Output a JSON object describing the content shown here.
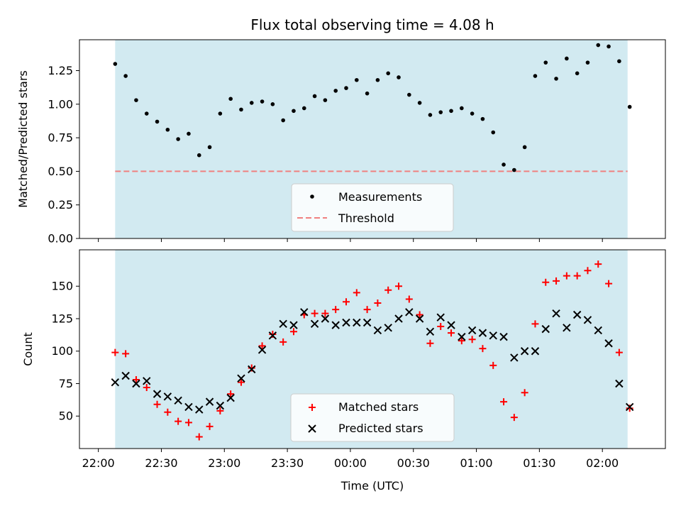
{
  "chart_data": [
    {
      "type": "scatter",
      "title": "Flux total observing time = 4.08 h",
      "ylabel": "Matched/Predicted stars",
      "xlabel": "",
      "ylim": [
        0,
        1.48
      ],
      "yticks": [
        "0.00",
        "0.25",
        "0.50",
        "0.75",
        "1.00",
        "1.25"
      ],
      "shaded_span": [
        "22:08",
        "02:12"
      ],
      "shaded_color": "#add8e6",
      "legend_position": "lower center",
      "series": [
        {
          "name": "Measurements",
          "marker": "dot",
          "color": "#000000",
          "x": [
            "22:08",
            "22:13",
            "22:18",
            "22:23",
            "22:28",
            "22:33",
            "22:38",
            "22:43",
            "22:48",
            "22:53",
            "22:58",
            "23:03",
            "23:08",
            "23:13",
            "23:18",
            "23:23",
            "23:28",
            "23:33",
            "23:38",
            "23:43",
            "23:48",
            "23:53",
            "23:58",
            "00:03",
            "00:08",
            "00:13",
            "00:18",
            "00:23",
            "00:28",
            "00:33",
            "00:38",
            "00:43",
            "00:48",
            "00:53",
            "00:58",
            "01:03",
            "01:08",
            "01:13",
            "01:18",
            "01:23",
            "01:28",
            "01:33",
            "01:38",
            "01:43",
            "01:48",
            "01:53",
            "01:58",
            "02:03",
            "02:08",
            "02:13"
          ],
          "y": [
            1.3,
            1.21,
            1.03,
            0.93,
            0.87,
            0.81,
            0.74,
            0.78,
            0.62,
            0.68,
            0.93,
            1.04,
            0.96,
            1.01,
            1.02,
            1.0,
            0.88,
            0.95,
            0.97,
            1.06,
            1.03,
            1.1,
            1.12,
            1.18,
            1.08,
            1.18,
            1.23,
            1.2,
            1.07,
            1.01,
            0.92,
            0.94,
            0.95,
            0.97,
            0.93,
            0.89,
            0.79,
            0.55,
            0.51,
            0.68,
            1.21,
            1.31,
            1.19,
            1.34,
            1.23,
            1.31,
            1.44,
            1.43,
            1.32,
            0.98
          ]
        },
        {
          "name": "Threshold",
          "style": "dashed",
          "color": "#f08080",
          "y": 0.5
        }
      ]
    },
    {
      "type": "scatter",
      "title": "",
      "ylabel": "Count",
      "xlabel": "Time (UTC)",
      "ylim": [
        25,
        178
      ],
      "yticks": [
        "50",
        "75",
        "100",
        "125",
        "150"
      ],
      "xticks": [
        "22:00",
        "22:30",
        "23:00",
        "23:30",
        "00:00",
        "00:30",
        "01:00",
        "01:30",
        "02:00"
      ],
      "shaded_span": [
        "22:08",
        "02:12"
      ],
      "shaded_color": "#add8e6",
      "legend_position": "lower center",
      "series": [
        {
          "name": "Matched stars",
          "marker": "plus",
          "color": "#ff0000",
          "x": [
            "22:08",
            "22:13",
            "22:18",
            "22:23",
            "22:28",
            "22:33",
            "22:38",
            "22:43",
            "22:48",
            "22:53",
            "22:58",
            "23:03",
            "23:08",
            "23:13",
            "23:18",
            "23:23",
            "23:28",
            "23:33",
            "23:38",
            "23:43",
            "23:48",
            "23:53",
            "23:58",
            "00:03",
            "00:08",
            "00:13",
            "00:18",
            "00:23",
            "00:28",
            "00:33",
            "00:38",
            "00:43",
            "00:48",
            "00:53",
            "00:58",
            "01:03",
            "01:08",
            "01:13",
            "01:18",
            "01:23",
            "01:28",
            "01:33",
            "01:38",
            "01:43",
            "01:48",
            "01:53",
            "01:58",
            "02:03",
            "02:08",
            "02:13"
          ],
          "y": [
            99,
            98,
            78,
            72,
            59,
            53,
            46,
            45,
            34,
            42,
            54,
            67,
            76,
            87,
            104,
            113,
            107,
            115,
            128,
            129,
            129,
            132,
            138,
            145,
            132,
            137,
            147,
            150,
            140,
            128,
            106,
            119,
            114,
            108,
            109,
            102,
            89,
            61,
            49,
            68,
            121,
            153,
            154,
            158,
            158,
            162,
            167,
            152,
            99,
            56
          ]
        },
        {
          "name": "Predicted stars",
          "marker": "x",
          "color": "#000000",
          "x": [
            "22:08",
            "22:13",
            "22:18",
            "22:23",
            "22:28",
            "22:33",
            "22:38",
            "22:43",
            "22:48",
            "22:53",
            "22:58",
            "23:03",
            "23:08",
            "23:13",
            "23:18",
            "23:23",
            "23:28",
            "23:33",
            "23:38",
            "23:43",
            "23:48",
            "23:53",
            "23:58",
            "00:03",
            "00:08",
            "00:13",
            "00:18",
            "00:23",
            "00:28",
            "00:33",
            "00:38",
            "00:43",
            "00:48",
            "00:53",
            "00:58",
            "01:03",
            "01:08",
            "01:13",
            "01:18",
            "01:23",
            "01:28",
            "01:33",
            "01:38",
            "01:43",
            "01:48",
            "01:53",
            "01:58",
            "02:03",
            "02:08",
            "02:13"
          ],
          "y": [
            76,
            81,
            75,
            77,
            67,
            65,
            62,
            57,
            55,
            61,
            58,
            64,
            79,
            86,
            101,
            112,
            121,
            120,
            130,
            121,
            125,
            120,
            122,
            122,
            122,
            116,
            118,
            125,
            130,
            125,
            115,
            126,
            120,
            111,
            116,
            114,
            112,
            111,
            95,
            100,
            100,
            117,
            129,
            118,
            128,
            124,
            116,
            106,
            75,
            57
          ]
        }
      ]
    }
  ]
}
